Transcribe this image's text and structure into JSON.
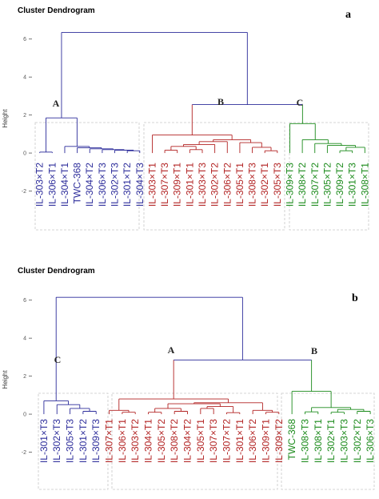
{
  "chart_data": [
    {
      "type": "dendrogram",
      "title": "Cluster Dendrogram",
      "panel_label": "a",
      "ylabel": "Height",
      "ylim": [
        -2.4,
        6.2
      ],
      "yticks": [
        6,
        4,
        2,
        0,
        -2
      ],
      "leaves": [
        {
          "label": "IL-303×T2",
          "cluster": "A"
        },
        {
          "label": "IL-306×T1",
          "cluster": "A"
        },
        {
          "label": "IL-304×T1",
          "cluster": "A"
        },
        {
          "label": "TWC-368",
          "cluster": "A"
        },
        {
          "label": "IL-304×T2",
          "cluster": "A"
        },
        {
          "label": "IL-306×T3",
          "cluster": "A"
        },
        {
          "label": "IL-302×T3",
          "cluster": "A"
        },
        {
          "label": "IL-301×T2",
          "cluster": "A"
        },
        {
          "label": "IL-304×T3",
          "cluster": "A"
        },
        {
          "label": "IL-303×T1",
          "cluster": "B"
        },
        {
          "label": "IL-307×T3",
          "cluster": "B"
        },
        {
          "label": "IL-309×T1",
          "cluster": "B"
        },
        {
          "label": "IL-301×T1",
          "cluster": "B"
        },
        {
          "label": "IL-303×T3",
          "cluster": "B"
        },
        {
          "label": "IL-302×T2",
          "cluster": "B"
        },
        {
          "label": "IL-306×T2",
          "cluster": "B"
        },
        {
          "label": "IL-305×T1",
          "cluster": "B"
        },
        {
          "label": "IL-308×T3",
          "cluster": "B"
        },
        {
          "label": "IL-302×T1",
          "cluster": "B"
        },
        {
          "label": "IL-305×T3",
          "cluster": "B"
        },
        {
          "label": "IL-309×T3",
          "cluster": "C"
        },
        {
          "label": "IL-308×T2",
          "cluster": "C"
        },
        {
          "label": "IL-307×T2",
          "cluster": "C"
        },
        {
          "label": "IL-305×T2",
          "cluster": "C"
        },
        {
          "label": "IL-309×T2",
          "cluster": "C"
        },
        {
          "label": "IL-301×T3",
          "cluster": "C"
        },
        {
          "label": "IL-308×T1",
          "cluster": "C"
        }
      ],
      "clusters": [
        {
          "name": "A",
          "color": "#2b2b9a"
        },
        {
          "name": "B",
          "color": "#b22222"
        },
        {
          "name": "C",
          "color": "#1a8a1a"
        }
      ],
      "merges": [
        [
          0,
          1,
          0.05
        ],
        [
          7,
          8,
          0.12
        ],
        [
          6,
          "m2",
          0.15
        ],
        [
          5,
          "m3",
          0.18
        ],
        [
          4,
          "m4",
          0.22
        ],
        [
          3,
          "m5",
          0.28
        ],
        [
          2,
          "m6",
          0.35
        ],
        [
          "m1",
          "m7",
          1.85
        ],
        [
          10,
          11,
          0.15
        ],
        [
          12,
          13,
          0.18
        ],
        [
          "m9",
          "m10",
          0.35
        ],
        [
          "m11",
          14,
          0.45
        ],
        [
          18,
          19,
          0.12
        ],
        [
          17,
          "m13",
          0.3
        ],
        [
          16,
          "m14",
          0.55
        ],
        [
          "m12",
          15,
          0.6
        ],
        [
          "m16",
          "m15",
          0.7
        ],
        [
          9,
          "m17",
          0.95
        ],
        [
          24,
          25,
          0.12
        ],
        [
          26,
          "m19",
          0.3
        ],
        [
          23,
          "m20",
          0.4
        ],
        [
          22,
          "m21",
          0.5
        ],
        [
          21,
          "m22",
          0.7
        ],
        [
          20,
          "m23",
          1.55
        ],
        [
          "m18",
          "m24",
          2.55
        ],
        [
          "m8",
          "m25",
          6.35
        ]
      ]
    },
    {
      "type": "dendrogram",
      "title": "Cluster Dendrogram",
      "panel_label": "b",
      "ylabel": "Height",
      "ylim": [
        -2.4,
        6.2
      ],
      "yticks": [
        6,
        4,
        2,
        0,
        -2
      ],
      "leaves": [
        {
          "label": "IL-301×T3",
          "cluster": "C"
        },
        {
          "label": "IL-302×T3",
          "cluster": "C"
        },
        {
          "label": "IL-305×T3",
          "cluster": "C"
        },
        {
          "label": "IL-301×T2",
          "cluster": "C"
        },
        {
          "label": "IL-309×T3",
          "cluster": "C"
        },
        {
          "label": "IL-307×T1",
          "cluster": "A"
        },
        {
          "label": "IL-306×T1",
          "cluster": "A"
        },
        {
          "label": "IL-303×T2",
          "cluster": "A"
        },
        {
          "label": "IL-304×T1",
          "cluster": "A"
        },
        {
          "label": "IL-305×T2",
          "cluster": "A"
        },
        {
          "label": "IL-308×T2",
          "cluster": "A"
        },
        {
          "label": "IL-304×T2",
          "cluster": "A"
        },
        {
          "label": "IL-305×T1",
          "cluster": "A"
        },
        {
          "label": "IL-307×T3",
          "cluster": "A"
        },
        {
          "label": "IL-307×T2",
          "cluster": "A"
        },
        {
          "label": "IL-301×T1",
          "cluster": "A"
        },
        {
          "label": "IL-306×T2",
          "cluster": "A"
        },
        {
          "label": "IL-309×T1",
          "cluster": "A"
        },
        {
          "label": "IL-309×T2",
          "cluster": "A"
        },
        {
          "label": "TWC-368",
          "cluster": "B"
        },
        {
          "label": "IL-308×T3",
          "cluster": "B"
        },
        {
          "label": "IL-308×T1",
          "cluster": "B"
        },
        {
          "label": "IL-302×T1",
          "cluster": "B"
        },
        {
          "label": "IL-303×T3",
          "cluster": "B"
        },
        {
          "label": "IL-302×T2",
          "cluster": "B"
        },
        {
          "label": "IL-306×T3",
          "cluster": "B"
        }
      ],
      "clusters": [
        {
          "name": "A",
          "color": "#b22222"
        },
        {
          "name": "B",
          "color": "#1a8a1a"
        },
        {
          "name": "C",
          "color": "#2b2b9a"
        }
      ],
      "merges": [
        [
          3,
          4,
          0.15
        ],
        [
          2,
          "m1",
          0.3
        ],
        [
          1,
          "m2",
          0.5
        ],
        [
          0,
          "m3",
          0.7
        ],
        [
          6,
          7,
          0.1
        ],
        [
          5,
          "m5",
          0.2
        ],
        [
          8,
          9,
          0.1
        ],
        [
          10,
          11,
          0.15
        ],
        [
          "m7",
          "m8",
          0.3
        ],
        [
          12,
          13,
          0.3
        ],
        [
          14,
          15,
          0.08
        ],
        [
          "m10",
          "m11",
          0.4
        ],
        [
          "m9",
          "m12",
          0.55
        ],
        [
          17,
          18,
          0.1
        ],
        [
          16,
          "m14",
          0.2
        ],
        [
          "m13",
          "m15",
          0.6
        ],
        [
          "m6",
          "m16",
          0.8
        ],
        [
          20,
          21,
          0.12
        ],
        [
          22,
          23,
          0.1
        ],
        [
          24,
          25,
          0.15
        ],
        [
          "m19",
          "m20",
          0.25
        ],
        [
          "m18",
          "m21",
          0.35
        ],
        [
          19,
          "m22",
          1.2
        ],
        [
          "m17",
          "m23",
          2.85
        ],
        [
          "m4",
          "m24",
          6.15
        ]
      ]
    }
  ]
}
